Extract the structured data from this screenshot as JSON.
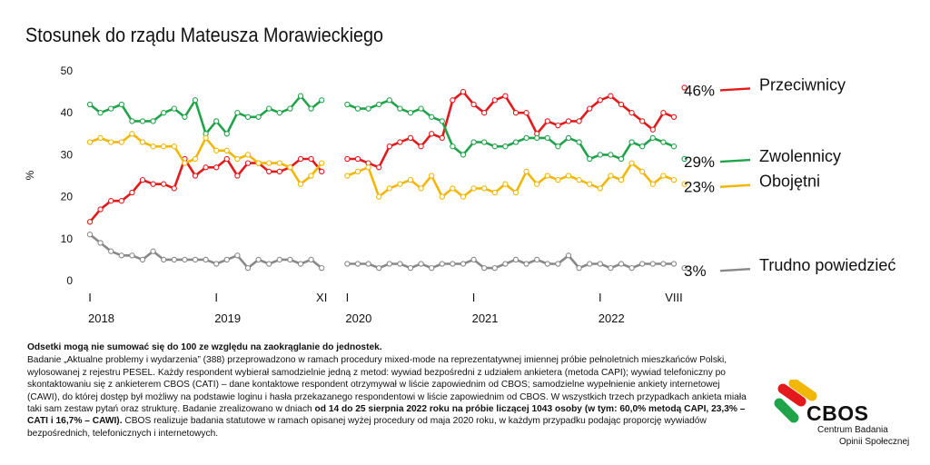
{
  "chart_data": {
    "type": "line",
    "title": "Stosunek do rządu Mateusza Morawieckiego",
    "ylabel": "%",
    "ylim": [
      0,
      50
    ],
    "yticks": [
      0,
      10,
      20,
      30,
      40,
      50
    ],
    "grid": false,
    "legend": "right",
    "x_tick_labels": [
      {
        "label": "I",
        "idx": 0
      },
      {
        "label": "I",
        "idx": 12
      },
      {
        "label": "XI",
        "idx": 22
      },
      {
        "label": "I",
        "idx": 24
      },
      {
        "label": "I",
        "idx": 36
      },
      {
        "label": "I",
        "idx": 48
      },
      {
        "label": "VIII",
        "idx": 55
      }
    ],
    "x_year_labels": [
      {
        "label": "2018",
        "idx": 0
      },
      {
        "label": "2019",
        "idx": 12
      },
      {
        "label": "2020",
        "idx": 24
      },
      {
        "label": "2021",
        "idx": 36
      },
      {
        "label": "2022",
        "idx": 48
      }
    ],
    "segments": [
      {
        "start": 0,
        "end": 22
      },
      {
        "start": 24,
        "end": 55
      }
    ],
    "series": [
      {
        "name": "Przeciwnicy",
        "end_label": "46%",
        "color": "#e3191b",
        "values": [
          14,
          17,
          19,
          19,
          21,
          24,
          23,
          23,
          22,
          29,
          25,
          27,
          27,
          29,
          25,
          28,
          28,
          26,
          26,
          27,
          29,
          29,
          26,
          null,
          29,
          29,
          28,
          27,
          32,
          33,
          34,
          32,
          35,
          34,
          43,
          45,
          42,
          40,
          43,
          44,
          40,
          40,
          35,
          38,
          37,
          38,
          38,
          41,
          43,
          44,
          42,
          40,
          38,
          36,
          40,
          39,
          46
        ]
      },
      {
        "name": "Zwolennicy",
        "end_label": "29%",
        "color": "#21a34a",
        "values": [
          42,
          40,
          41,
          42,
          38,
          38,
          38,
          40,
          41,
          39,
          43,
          35,
          38,
          35,
          40,
          39,
          39,
          41,
          40,
          41,
          44,
          41,
          43,
          null,
          42,
          41,
          41,
          42,
          43,
          41,
          40,
          41,
          39,
          38,
          32,
          30,
          33,
          33,
          32,
          32,
          33,
          34,
          34,
          34,
          32,
          34,
          33,
          29,
          30,
          30,
          29,
          33,
          32,
          34,
          33,
          32,
          29
        ]
      },
      {
        "name": "Obojętni",
        "end_label": "23%",
        "color": "#f2b705",
        "values": [
          33,
          34,
          33,
          33,
          35,
          33,
          32,
          32,
          32,
          28,
          29,
          34,
          31,
          31,
          29,
          30,
          28,
          28,
          28,
          27,
          23,
          25,
          28,
          null,
          25,
          26,
          27,
          20,
          22,
          23,
          24,
          22,
          25,
          20,
          22,
          20,
          22,
          22,
          21,
          23,
          21,
          26,
          23,
          25,
          24,
          25,
          24,
          23,
          22,
          25,
          24,
          28,
          26,
          23,
          25,
          24,
          23
        ]
      },
      {
        "name": "Trudno powiedzieć",
        "end_label": "3%",
        "color": "#888888",
        "values": [
          11,
          9,
          7,
          6,
          6,
          5,
          7,
          5,
          5,
          5,
          5,
          5,
          4,
          5,
          6,
          3,
          5,
          4,
          5,
          5,
          4,
          5,
          3,
          null,
          4,
          4,
          4,
          3,
          4,
          4,
          3,
          4,
          3,
          4,
          4,
          4,
          5,
          3,
          3,
          4,
          5,
          4,
          5,
          4,
          4,
          6,
          3,
          4,
          4,
          3,
          4,
          3,
          4,
          4,
          4,
          4,
          3
        ]
      }
    ]
  },
  "notes": {
    "line1": "Odsetki mogą nie sumować się do 100 ze względu na zaokrąglanie do jednostek.",
    "p_a": "Badanie „Aktualne problemy i wydarzenia” (388) przeprowadzono w ramach procedury mixed-mode na reprezentatywnej imiennej próbie pełnoletnich mieszkańców Polski, wylosowanej z rejestru PESEL. Każdy respondent wybierał samodzielnie jedną z metod: wywiad bezpośredni z udziałem ankietera (metoda CAPI); wywiad telefoniczny po skontaktowaniu się z ankieterem CBOS (CATI) – dane kontaktowe respondent otrzymywał w liście zapowiednim od CBOS; samodzielne wypełnienie ankiety internetowej (CAWI), do której dostęp był możliwy na podstawie loginu i hasła przekazanego respondentowi w liście zapowiednim od CBOS. W wszystkich trzech przypadkach ankieta miała taki sam zestaw pytań oraz strukturę. Badanie zrealizowano w dniach ",
    "p_b": "od 14 do 25 sierpnia 2022 roku na próbie liczącej 1043 osoby",
    "p_c": " ",
    "p_d": "(w tym: 60,0% metodą CAPI, 23,3% – CATI i 16,7% – CAWI).",
    "p_e": " CBOS realizuje badania statutowe w ramach opisanej wyżej procedury od maja 2020 roku, w każdym przypadku podając proporcję wywiadów bezpośrednich, telefonicznych i internetowych."
  },
  "logo": {
    "name": "CBOS",
    "subtitle1": "Centrum Badania",
    "subtitle2": "Opinii Społecznej",
    "colors": [
      "#e3191b",
      "#f2b705",
      "#21a34a"
    ]
  }
}
